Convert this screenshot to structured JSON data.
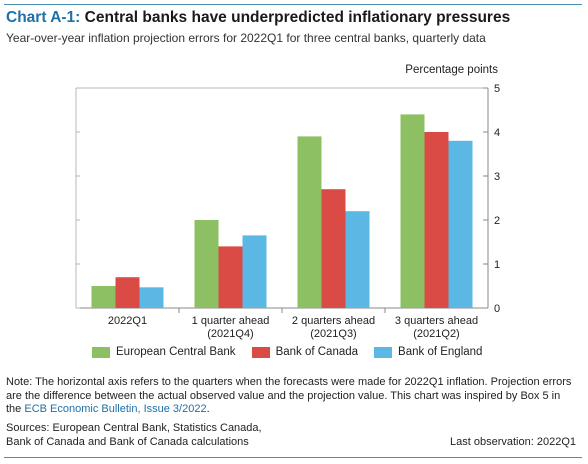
{
  "header": {
    "title_prefix": "Chart A-1:",
    "title_text": " Central banks have underpredicted inflationary pressures",
    "subtitle": "Year-over-year inflation projection errors for 2022Q1 for three central banks, quarterly data"
  },
  "chart_data": {
    "type": "bar",
    "unit_label": "Percentage points",
    "categories": [
      [
        "2022Q1"
      ],
      [
        "1 quarter ahead",
        "(2021Q4)"
      ],
      [
        "2 quarters ahead",
        "(2021Q3)"
      ],
      [
        "3 quarters ahead",
        "(2021Q2)"
      ]
    ],
    "series": [
      {
        "name": "European Central Bank",
        "color": "#8cc063",
        "values": [
          0.5,
          2.0,
          3.9,
          4.4
        ]
      },
      {
        "name": "Bank of Canada",
        "color": "#d94b44",
        "values": [
          0.7,
          1.4,
          2.7,
          4.0
        ]
      },
      {
        "name": "Bank of England",
        "color": "#5bb7e3",
        "values": [
          0.47,
          1.65,
          2.2,
          3.8
        ]
      }
    ],
    "ylim": [
      0,
      5
    ],
    "yticks": [
      0,
      1,
      2,
      3,
      4,
      5
    ],
    "y_axis_side": "right",
    "grid": false,
    "legend_position": "bottom"
  },
  "footer": {
    "note_text": "Note: The horizontal axis refers to the quarters when the forecasts were made for 2022Q1 inflation. Projection errors are the difference between the actual observed value and the projection value. This chart was inspired by Box 5 in the ",
    "note_link": "ECB Economic Bulletin, Issue 3/2022",
    "note_end": ".",
    "sources_line1": "Sources: European Central Bank, Statistics Canada,",
    "sources_line2": "Bank of Canada and Bank of Canada calculations",
    "last_observation": "Last observation: 2022Q1"
  }
}
